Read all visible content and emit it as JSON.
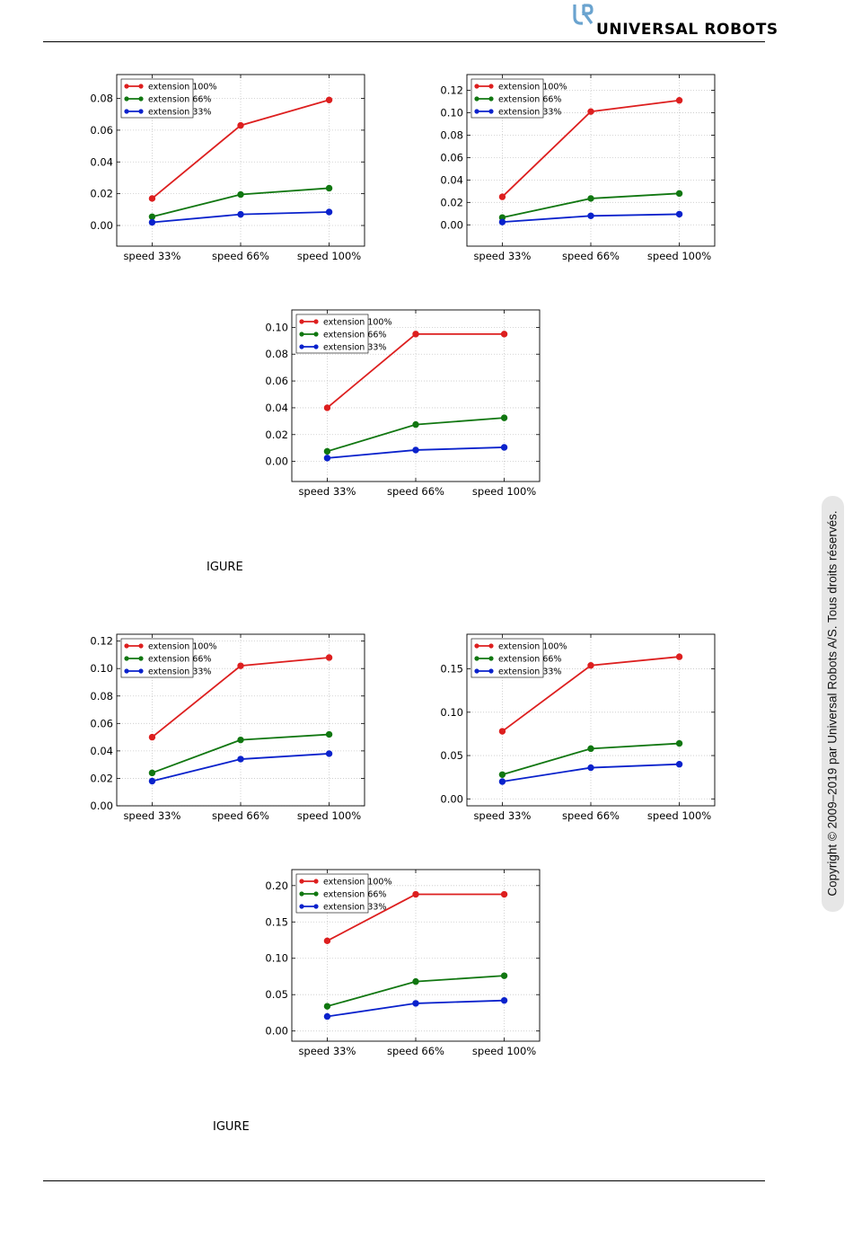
{
  "header": {
    "logo_text": "UNIVERSAL ROBOTS",
    "logo_icon": "ur-logo-icon",
    "logo_color": "#6aa3cf"
  },
  "captions": [
    "IGURE",
    "IGURE"
  ],
  "copyright": "Copyright © 2009–2019 par Universal Robots A/S. Tous droits réservés.",
  "colors": {
    "extension_100": "#dd1f1f",
    "extension_66": "#117711",
    "extension_33": "#0a22cc"
  },
  "chart_data": [
    {
      "type": "line",
      "categories": [
        "speed 33%",
        "speed 66%",
        "speed 100%"
      ],
      "ylim": [
        -0.013,
        0.095
      ],
      "yticks": [
        0.0,
        0.02,
        0.04,
        0.06,
        0.08
      ],
      "tick_decimals": 2,
      "grid": true,
      "legend": "top-left",
      "series": [
        {
          "name": "extension 100%",
          "color": "#dd1f1f",
          "values": [
            0.017,
            0.063,
            0.079
          ]
        },
        {
          "name": "extension 66%",
          "color": "#117711",
          "values": [
            0.0055,
            0.0195,
            0.0235
          ]
        },
        {
          "name": "extension 33%",
          "color": "#0a22cc",
          "values": [
            0.002,
            0.007,
            0.0085
          ]
        }
      ]
    },
    {
      "type": "line",
      "categories": [
        "speed 33%",
        "speed 66%",
        "speed 100%"
      ],
      "ylim": [
        -0.019,
        0.134
      ],
      "yticks": [
        0.0,
        0.02,
        0.04,
        0.06,
        0.08,
        0.1,
        0.12
      ],
      "tick_decimals": 2,
      "grid": true,
      "legend": "top-left",
      "series": [
        {
          "name": "extension 100%",
          "color": "#dd1f1f",
          "values": [
            0.025,
            0.101,
            0.111
          ]
        },
        {
          "name": "extension 66%",
          "color": "#117711",
          "values": [
            0.0065,
            0.0235,
            0.028
          ]
        },
        {
          "name": "extension 33%",
          "color": "#0a22cc",
          "values": [
            0.0025,
            0.008,
            0.0095
          ]
        }
      ]
    },
    {
      "type": "line",
      "categories": [
        "speed 33%",
        "speed 66%",
        "speed 100%"
      ],
      "ylim": [
        -0.015,
        0.113
      ],
      "yticks": [
        0.0,
        0.02,
        0.04,
        0.06,
        0.08,
        0.1
      ],
      "tick_decimals": 2,
      "grid": true,
      "legend": "top-left",
      "series": [
        {
          "name": "extension 100%",
          "color": "#dd1f1f",
          "values": [
            0.04,
            0.095,
            0.095
          ]
        },
        {
          "name": "extension 66%",
          "color": "#117711",
          "values": [
            0.0075,
            0.0275,
            0.0325
          ]
        },
        {
          "name": "extension 33%",
          "color": "#0a22cc",
          "values": [
            0.0025,
            0.0085,
            0.0105
          ]
        }
      ]
    },
    {
      "type": "line",
      "categories": [
        "speed 33%",
        "speed 66%",
        "speed 100%"
      ],
      "ylim": [
        0.0,
        0.125
      ],
      "yticks": [
        0.0,
        0.02,
        0.04,
        0.06,
        0.08,
        0.1,
        0.12
      ],
      "tick_decimals": 2,
      "grid": true,
      "legend": "top-left",
      "series": [
        {
          "name": "extension 100%",
          "color": "#dd1f1f",
          "values": [
            0.05,
            0.102,
            0.108
          ]
        },
        {
          "name": "extension 66%",
          "color": "#117711",
          "values": [
            0.024,
            0.048,
            0.052
          ]
        },
        {
          "name": "extension 33%",
          "color": "#0a22cc",
          "values": [
            0.018,
            0.034,
            0.038
          ]
        }
      ]
    },
    {
      "type": "line",
      "categories": [
        "speed 33%",
        "speed 66%",
        "speed 100%"
      ],
      "ylim": [
        -0.008,
        0.19
      ],
      "yticks": [
        0.0,
        0.05,
        0.1,
        0.15
      ],
      "tick_decimals": 2,
      "grid": true,
      "legend": "top-left",
      "series": [
        {
          "name": "extension 100%",
          "color": "#dd1f1f",
          "values": [
            0.078,
            0.154,
            0.164
          ]
        },
        {
          "name": "extension 66%",
          "color": "#117711",
          "values": [
            0.028,
            0.058,
            0.064
          ]
        },
        {
          "name": "extension 33%",
          "color": "#0a22cc",
          "values": [
            0.02,
            0.036,
            0.04
          ]
        }
      ]
    },
    {
      "type": "line",
      "categories": [
        "speed 33%",
        "speed 66%",
        "speed 100%"
      ],
      "ylim": [
        -0.014,
        0.222
      ],
      "yticks": [
        0.0,
        0.05,
        0.1,
        0.15,
        0.2
      ],
      "tick_decimals": 2,
      "grid": true,
      "legend": "top-left",
      "series": [
        {
          "name": "extension 100%",
          "color": "#dd1f1f",
          "values": [
            0.124,
            0.188,
            0.188
          ]
        },
        {
          "name": "extension 66%",
          "color": "#117711",
          "values": [
            0.034,
            0.068,
            0.076
          ]
        },
        {
          "name": "extension 33%",
          "color": "#0a22cc",
          "values": [
            0.02,
            0.038,
            0.042
          ]
        }
      ]
    }
  ]
}
